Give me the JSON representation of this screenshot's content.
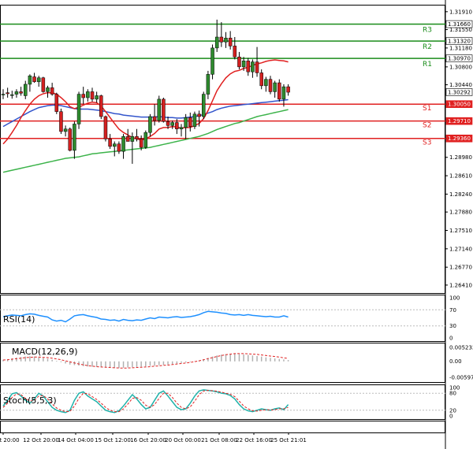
{
  "chart_data": {
    "type": "candlestick",
    "ylim": [
      1.2625,
      1.3205
    ],
    "y_ticks": [
      "1.31910",
      "1.31550",
      "1.31180",
      "1.30800",
      "1.30440",
      "1.30050",
      "1.29710",
      "1.29360",
      "1.28980",
      "1.28610",
      "1.28240",
      "1.27880",
      "1.27510",
      "1.27140",
      "1.26770",
      "1.26410"
    ],
    "x_ticks": [
      "9 Oct 20:00",
      "12 Oct 20:00",
      "14 Oct 04:00",
      "15 Oct 12:00",
      "16 Oct 20:00",
      "20 Oct 00:00",
      "21 Oct 08:00",
      "22 Oct 16:00",
      "25 Oct 21:01"
    ],
    "current_price": "1.30292",
    "levels": [
      {
        "name": "R3",
        "value": 1.3166,
        "value_label": "1.31660",
        "color": "#1a8c1a"
      },
      {
        "name": "R2",
        "value": 1.3132,
        "value_label": "1.31320",
        "color": "#1a8c1a"
      },
      {
        "name": "R1",
        "value": 1.3097,
        "value_label": "1.30970",
        "color": "#1a8c1a"
      },
      {
        "name": "S1",
        "value": 1.3005,
        "value_label": "1.30050",
        "color": "#e02020"
      },
      {
        "name": "S2",
        "value": 1.2971,
        "value_label": "1.29710",
        "color": "#e02020"
      },
      {
        "name": "S3",
        "value": 1.2936,
        "value_label": "1.29360",
        "color": "#e02020"
      }
    ],
    "candles": [
      [
        1.3025,
        1.3035,
        1.3015,
        1.3025
      ],
      [
        1.3028,
        1.3038,
        1.3018,
        1.3026
      ],
      [
        1.3023,
        1.3032,
        1.3016,
        1.3024
      ],
      [
        1.3025,
        1.3035,
        1.3018,
        1.303
      ],
      [
        1.303,
        1.304,
        1.3022,
        1.3027
      ],
      [
        1.3022,
        1.3052,
        1.3015,
        1.3045
      ],
      [
        1.3045,
        1.3065,
        1.303,
        1.3062
      ],
      [
        1.306,
        1.3068,
        1.3048,
        1.305
      ],
      [
        1.305,
        1.3062,
        1.304,
        1.3058
      ],
      [
        1.3058,
        1.306,
        1.3028,
        1.303
      ],
      [
        1.303,
        1.3042,
        1.3018,
        1.3038
      ],
      [
        1.3038,
        1.3048,
        1.3022,
        1.3025
      ],
      [
        1.3025,
        1.3028,
        1.2985,
        1.299
      ],
      [
        1.299,
        1.2996,
        1.2945,
        1.295
      ],
      [
        1.295,
        1.2962,
        1.294,
        1.2955
      ],
      [
        1.2955,
        1.2958,
        1.291,
        1.2912
      ],
      [
        1.2912,
        1.297,
        1.2895,
        1.2965
      ],
      [
        1.2965,
        1.303,
        1.2955,
        1.3025
      ],
      [
        1.3025,
        1.304,
        1.3005,
        1.3018
      ],
      [
        1.3018,
        1.3035,
        1.301,
        1.303
      ],
      [
        1.303,
        1.3038,
        1.301,
        1.3015
      ],
      [
        1.3015,
        1.303,
        1.3008,
        1.3022
      ],
      [
        1.3022,
        1.3024,
        1.2975,
        1.298
      ],
      [
        1.298,
        1.2982,
        1.293,
        1.2935
      ],
      [
        1.2935,
        1.2945,
        1.2915,
        1.292
      ],
      [
        1.292,
        1.293,
        1.29,
        1.2925
      ],
      [
        1.2925,
        1.293,
        1.2905,
        1.291
      ],
      [
        1.291,
        1.2945,
        1.2895,
        1.294
      ],
      [
        1.294,
        1.2955,
        1.293,
        1.293
      ],
      [
        1.293,
        1.2948,
        1.2885,
        1.294
      ],
      [
        1.294,
        1.2955,
        1.293,
        1.2935
      ],
      [
        1.2935,
        1.2942,
        1.2912,
        1.2918
      ],
      [
        1.2918,
        1.2952,
        1.2915,
        1.2948
      ],
      [
        1.2948,
        1.2985,
        1.294,
        1.298
      ],
      [
        1.298,
        1.3005,
        1.2962,
        1.2972
      ],
      [
        1.2972,
        1.3022,
        1.2968,
        1.3015
      ],
      [
        1.3015,
        1.3018,
        1.2968,
        1.297
      ],
      [
        1.297,
        1.298,
        1.2955,
        1.2962
      ],
      [
        1.2962,
        1.2972,
        1.2955,
        1.2968
      ],
      [
        1.2968,
        1.2975,
        1.2945,
        1.2955
      ],
      [
        1.2955,
        1.2965,
        1.294,
        1.2958
      ],
      [
        1.2958,
        1.2985,
        1.2935,
        1.2978
      ],
      [
        1.2978,
        1.2988,
        1.295,
        1.296
      ],
      [
        1.296,
        1.299,
        1.2955,
        1.2985
      ],
      [
        1.2985,
        1.2992,
        1.296,
        1.298
      ],
      [
        1.298,
        1.303,
        1.2975,
        1.3025
      ],
      [
        1.3025,
        1.3072,
        1.3015,
        1.3065
      ],
      [
        1.3065,
        1.3125,
        1.3055,
        1.3118
      ],
      [
        1.3118,
        1.3175,
        1.311,
        1.314
      ],
      [
        1.314,
        1.317,
        1.312,
        1.313
      ],
      [
        1.313,
        1.315,
        1.3118,
        1.3138
      ],
      [
        1.3138,
        1.3152,
        1.3115,
        1.3122
      ],
      [
        1.3122,
        1.314,
        1.3095,
        1.31
      ],
      [
        1.31,
        1.311,
        1.3075,
        1.308
      ],
      [
        1.308,
        1.31,
        1.3072,
        1.3092
      ],
      [
        1.3092,
        1.3098,
        1.3062,
        1.307
      ],
      [
        1.307,
        1.3095,
        1.3058,
        1.309
      ],
      [
        1.309,
        1.312,
        1.306,
        1.3068
      ],
      [
        1.3068,
        1.3075,
        1.3035,
        1.3042
      ],
      [
        1.3042,
        1.306,
        1.303,
        1.3055
      ],
      [
        1.3055,
        1.3062,
        1.3025,
        1.303
      ],
      [
        1.303,
        1.3052,
        1.3018,
        1.3048
      ],
      [
        1.3048,
        1.3055,
        1.301,
        1.3015
      ],
      [
        1.3015,
        1.3045,
        1.3,
        1.304
      ],
      [
        1.304,
        1.3045,
        1.3022,
        1.3029
      ]
    ],
    "ma_red": [
      1.2925,
      1.2935,
      1.2948,
      1.2962,
      1.2978,
      1.2992,
      1.3005,
      1.3015,
      1.3022,
      1.3026,
      1.3028,
      1.3028,
      1.3025,
      1.3018,
      1.301,
      1.3,
      1.2996,
      1.2999,
      1.3003,
      1.3007,
      1.3009,
      1.3008,
      1.3001,
      1.299,
      1.2978,
      1.2966,
      1.2955,
      1.2948,
      1.2943,
      1.2938,
      1.2935,
      1.2933,
      1.2935,
      1.294,
      1.2946,
      1.2955,
      1.2958,
      1.2958,
      1.296,
      1.2959,
      1.2957,
      1.2958,
      1.2958,
      1.2962,
      1.2966,
      1.2976,
      1.2992,
      1.3012,
      1.3032,
      1.3046,
      1.3058,
      1.3066,
      1.3071,
      1.3073,
      1.3077,
      1.3079,
      1.3083,
      1.3086,
      1.3088,
      1.3091,
      1.3093,
      1.3094,
      1.3093,
      1.3092,
      1.309
    ],
    "ma_blue": [
      1.296,
      1.2965,
      1.297,
      1.2975,
      1.298,
      1.2985,
      1.299,
      1.2994,
      1.2998,
      1.3,
      1.3002,
      1.3003,
      1.3003,
      1.3002,
      1.3,
      1.2998,
      1.2996,
      1.2995,
      1.2995,
      1.2995,
      1.2994,
      1.2993,
      1.2992,
      1.299,
      1.2988,
      1.2986,
      1.2985,
      1.2983,
      1.2982,
      1.2981,
      1.298,
      1.2979,
      1.2979,
      1.2979,
      1.2979,
      1.298,
      1.2979,
      1.2978,
      1.2978,
      1.2977,
      1.2977,
      1.2978,
      1.2979,
      1.298,
      1.2982,
      1.2984,
      1.2987,
      1.299,
      1.2994,
      1.2997,
      1.2999,
      1.3001,
      1.3002,
      1.3003,
      1.3004,
      1.3005,
      1.3006,
      1.3007,
      1.3008,
      1.3009,
      1.301,
      1.3011,
      1.3012,
      1.3013,
      1.3014
    ],
    "ma_green": [
      1.2868,
      1.287,
      1.2872,
      1.2874,
      1.2876,
      1.2878,
      1.288,
      1.2882,
      1.2884,
      1.2886,
      1.2888,
      1.289,
      1.2892,
      1.2894,
      1.2896,
      1.2897,
      1.2898,
      1.2899,
      1.2901,
      1.2903,
      1.2905,
      1.2906,
      1.2907,
      1.2908,
      1.2909,
      1.291,
      1.2911,
      1.2912,
      1.2913,
      1.2914,
      1.2915,
      1.2916,
      1.2917,
      1.2918,
      1.292,
      1.2922,
      1.2924,
      1.2926,
      1.2928,
      1.293,
      1.2932,
      1.2934,
      1.2936,
      1.2938,
      1.294,
      1.2943,
      1.2946,
      1.295,
      1.2954,
      1.2957,
      1.296,
      1.2963,
      1.2966,
      1.2968,
      1.2971,
      1.2974,
      1.2977,
      1.298,
      1.2982,
      1.2984,
      1.2986,
      1.2988,
      1.299,
      1.2992,
      1.2994
    ],
    "rsi": {
      "label": "RSI(14)",
      "levels": [
        "100",
        "70",
        "30",
        "0"
      ],
      "values": [
        53,
        55,
        57,
        56,
        55,
        58,
        60,
        59,
        56,
        54,
        52,
        45,
        42,
        44,
        40,
        47,
        55,
        57,
        58,
        55,
        53,
        51,
        47,
        46,
        44,
        45,
        42,
        46,
        44,
        43,
        45,
        44,
        47,
        50,
        48,
        52,
        51,
        50,
        52,
        53,
        51,
        52,
        53,
        55,
        58,
        63,
        66,
        65,
        64,
        62,
        61,
        58,
        57,
        58,
        56,
        58,
        56,
        55,
        54,
        53,
        54,
        52,
        52,
        55,
        52
      ]
    },
    "macd": {
      "label": "MACD(12,26,9)",
      "levels": [
        "0.005232",
        "0.00",
        "-0.005975"
      ],
      "histogram": [
        0.0006,
        0.0008,
        0.0011,
        0.0014,
        0.0016,
        0.0018,
        0.0019,
        0.0018,
        0.0016,
        0.0013,
        0.001,
        0.0006,
        0.0002,
        -0.0003,
        -0.0008,
        -0.0012,
        -0.0014,
        -0.0016,
        -0.0018,
        -0.0019,
        -0.002,
        -0.0021,
        -0.0022,
        -0.0023,
        -0.0024,
        -0.0025,
        -0.0025,
        -0.0024,
        -0.0023,
        -0.0022,
        -0.0021,
        -0.002,
        -0.0019,
        -0.0017,
        -0.0016,
        -0.0014,
        -0.0013,
        -0.0012,
        -0.001,
        -0.0008,
        -0.0006,
        -0.0004,
        -0.0002,
        0.0001,
        0.0004,
        0.0008,
        0.0013,
        0.0018,
        0.0022,
        0.0025,
        0.0027,
        0.0028,
        0.0028,
        0.0027,
        0.0026,
        0.0024,
        0.0022,
        0.002,
        0.0018,
        0.0015,
        0.0013,
        0.0011,
        0.0009,
        0.0007,
        0.0005
      ],
      "signal": [
        0.0005,
        0.0006,
        0.0008,
        0.001,
        0.0012,
        0.0014,
        0.0015,
        0.0016,
        0.0016,
        0.0015,
        0.0014,
        0.0012,
        0.0009,
        0.0006,
        0.0002,
        -0.0002,
        -0.0006,
        -0.001,
        -0.0013,
        -0.0016,
        -0.0018,
        -0.002,
        -0.0021,
        -0.0022,
        -0.0023,
        -0.0024,
        -0.0025,
        -0.0025,
        -0.0025,
        -0.0024,
        -0.0023,
        -0.0022,
        -0.0021,
        -0.002,
        -0.0018,
        -0.0017,
        -0.0015,
        -0.0014,
        -0.0012,
        -0.001,
        -0.0008,
        -0.0006,
        -0.0004,
        -0.0001,
        0.0002,
        0.0006,
        0.001,
        0.0014,
        0.0018,
        0.0022,
        0.0025,
        0.0027,
        0.0029,
        0.0029,
        0.0029,
        0.0028,
        0.0027,
        0.0026,
        0.0024,
        0.0022,
        0.002,
        0.0018,
        0.0016,
        0.0013,
        0.0011
      ]
    },
    "stoch": {
      "label": "Stoch(5,5,3)",
      "levels": [
        "100",
        "80",
        "20",
        "0"
      ],
      "main": [
        35,
        55,
        78,
        82,
        70,
        55,
        45,
        60,
        80,
        70,
        50,
        30,
        20,
        15,
        12,
        20,
        55,
        80,
        85,
        70,
        60,
        50,
        35,
        20,
        15,
        12,
        18,
        35,
        55,
        75,
        60,
        40,
        25,
        30,
        55,
        80,
        88,
        70,
        50,
        30,
        22,
        25,
        45,
        70,
        88,
        92,
        90,
        88,
        85,
        80,
        78,
        72,
        60,
        40,
        25,
        18,
        15,
        20,
        25,
        22,
        20,
        25,
        28,
        22,
        40
      ],
      "signal": [
        30,
        45,
        65,
        78,
        75,
        62,
        52,
        55,
        70,
        72,
        60,
        42,
        28,
        20,
        15,
        16,
        35,
        62,
        80,
        78,
        68,
        58,
        45,
        30,
        20,
        15,
        15,
        25,
        42,
        62,
        65,
        55,
        38,
        30,
        40,
        62,
        80,
        80,
        65,
        45,
        30,
        25,
        32,
        52,
        75,
        88,
        90,
        89,
        87,
        84,
        80,
        76,
        68,
        52,
        35,
        25,
        18,
        17,
        20,
        22,
        21,
        22,
        25,
        25,
        30
      ]
    }
  }
}
